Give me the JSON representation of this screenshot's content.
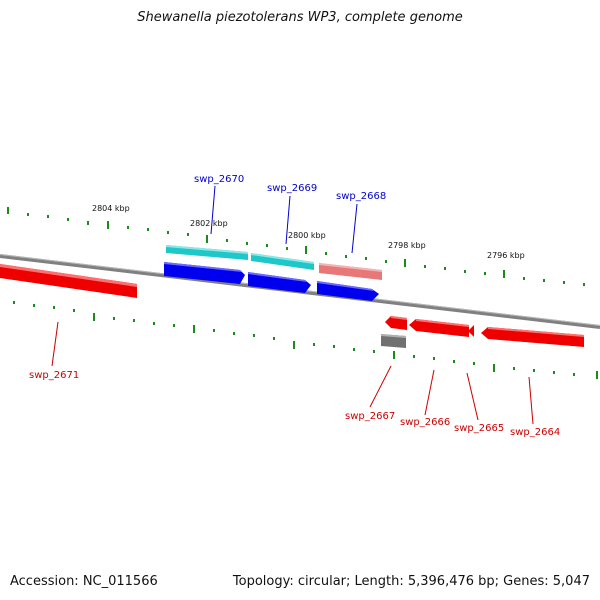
{
  "title": "Shewanella piezotolerans WP3, complete genome",
  "footer": {
    "accession": "Accession: NC_011566",
    "summary": "Topology: circular; Length: 5,396,476 bp; Genes: 5,047"
  },
  "scale_labels": [
    "2804 kbp",
    "2802 kbp",
    "2800 kbp",
    "2798 kbp",
    "2796 kbp"
  ],
  "genes": {
    "top": [
      "swp_2670",
      "swp_2669",
      "swp_2668"
    ],
    "bottom": [
      "swp_2671",
      "swp_2667",
      "swp_2666",
      "swp_2665",
      "swp_2664"
    ]
  },
  "colors": {
    "forward_label": "#0000cc",
    "reverse_label": "#cc0000",
    "cds_forward": "#0000ee",
    "cds_reverse": "#ee0000",
    "rna_cyan": "#1ec8c8",
    "pseudo_pink": "#e87878",
    "other_grey": "#707070",
    "tick_green": "#1a8a1a",
    "backbone": "#888888"
  }
}
